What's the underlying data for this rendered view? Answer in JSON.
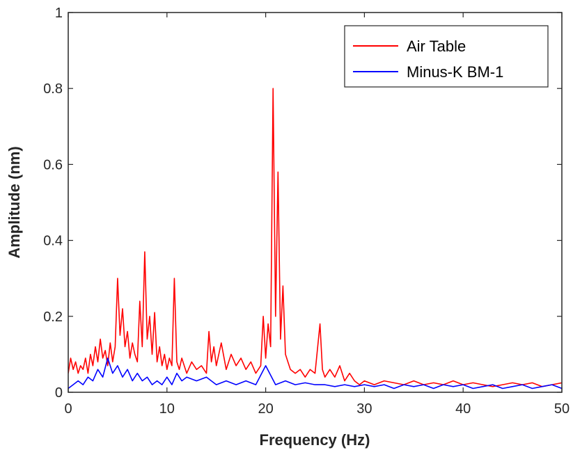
{
  "chart_data": {
    "type": "line",
    "xlabel": "Frequency (Hz)",
    "ylabel": "Amplitude (nm)",
    "xlim": [
      0,
      50
    ],
    "ylim": [
      0,
      1
    ],
    "x_ticks": [
      "0",
      "10",
      "20",
      "30",
      "40",
      "50"
    ],
    "y_ticks": [
      "0",
      "0.2",
      "0.4",
      "0.6",
      "0.8",
      "1"
    ],
    "grid": false,
    "legend_position": "top-right",
    "series": [
      {
        "name": "Air Table",
        "color": "#ff0000",
        "x": [
          0,
          0.25,
          0.5,
          0.75,
          1,
          1.25,
          1.5,
          1.75,
          2,
          2.25,
          2.5,
          2.75,
          3,
          3.25,
          3.5,
          3.75,
          4,
          4.25,
          4.5,
          4.75,
          5,
          5.25,
          5.5,
          5.75,
          6,
          6.25,
          6.5,
          6.75,
          7,
          7.25,
          7.5,
          7.75,
          8,
          8.25,
          8.5,
          8.75,
          9,
          9.25,
          9.5,
          9.75,
          10,
          10.25,
          10.5,
          10.75,
          11,
          11.25,
          11.5,
          11.75,
          12,
          12.5,
          13,
          13.5,
          14,
          14.25,
          14.5,
          14.75,
          15,
          15.5,
          16,
          16.5,
          17,
          17.5,
          18,
          18.5,
          19,
          19.5,
          19.75,
          20,
          20.25,
          20.5,
          20.75,
          21,
          21.25,
          21.5,
          21.75,
          22,
          22.25,
          22.5,
          23,
          23.5,
          24,
          24.5,
          25,
          25.5,
          25.75,
          26,
          26.5,
          27,
          27.5,
          28,
          28.5,
          29,
          29.5,
          30,
          31,
          32,
          33,
          34,
          35,
          36,
          37,
          38,
          39,
          40,
          41,
          42,
          43,
          44,
          45,
          46,
          47,
          48,
          49,
          50
        ],
        "y": [
          0.05,
          0.09,
          0.06,
          0.08,
          0.05,
          0.07,
          0.06,
          0.09,
          0.05,
          0.1,
          0.07,
          0.12,
          0.08,
          0.14,
          0.09,
          0.11,
          0.07,
          0.13,
          0.08,
          0.12,
          0.3,
          0.15,
          0.22,
          0.12,
          0.16,
          0.09,
          0.13,
          0.1,
          0.08,
          0.24,
          0.12,
          0.37,
          0.14,
          0.2,
          0.1,
          0.21,
          0.08,
          0.12,
          0.07,
          0.1,
          0.06,
          0.09,
          0.07,
          0.3,
          0.08,
          0.06,
          0.09,
          0.07,
          0.05,
          0.08,
          0.06,
          0.07,
          0.05,
          0.16,
          0.08,
          0.12,
          0.07,
          0.13,
          0.06,
          0.1,
          0.07,
          0.09,
          0.06,
          0.08,
          0.05,
          0.07,
          0.2,
          0.09,
          0.18,
          0.12,
          0.8,
          0.2,
          0.58,
          0.14,
          0.28,
          0.1,
          0.08,
          0.06,
          0.05,
          0.06,
          0.04,
          0.06,
          0.05,
          0.18,
          0.06,
          0.04,
          0.06,
          0.04,
          0.07,
          0.03,
          0.05,
          0.03,
          0.02,
          0.03,
          0.02,
          0.03,
          0.025,
          0.02,
          0.03,
          0.02,
          0.025,
          0.02,
          0.03,
          0.02,
          0.025,
          0.02,
          0.015,
          0.02,
          0.025,
          0.02,
          0.025,
          0.015,
          0.02,
          0.025
        ]
      },
      {
        "name": "Minus-K BM-1",
        "color": "#0000ff",
        "x": [
          0,
          0.5,
          1,
          1.5,
          2,
          2.5,
          3,
          3.5,
          4,
          4.5,
          5,
          5.5,
          6,
          6.5,
          7,
          7.5,
          8,
          8.5,
          9,
          9.5,
          10,
          10.5,
          11,
          11.5,
          12,
          13,
          14,
          15,
          16,
          17,
          18,
          19,
          20,
          21,
          22,
          23,
          24,
          25,
          26,
          27,
          28,
          29,
          30,
          31,
          32,
          33,
          34,
          35,
          36,
          37,
          38,
          39,
          40,
          41,
          42,
          43,
          44,
          45,
          46,
          47,
          48,
          49,
          50
        ],
        "y": [
          0.01,
          0.02,
          0.03,
          0.02,
          0.04,
          0.03,
          0.06,
          0.04,
          0.09,
          0.05,
          0.07,
          0.04,
          0.06,
          0.03,
          0.05,
          0.03,
          0.04,
          0.02,
          0.03,
          0.02,
          0.04,
          0.02,
          0.05,
          0.03,
          0.04,
          0.03,
          0.04,
          0.02,
          0.03,
          0.02,
          0.03,
          0.02,
          0.07,
          0.02,
          0.03,
          0.02,
          0.025,
          0.02,
          0.02,
          0.015,
          0.02,
          0.015,
          0.02,
          0.015,
          0.02,
          0.01,
          0.02,
          0.015,
          0.02,
          0.01,
          0.02,
          0.015,
          0.02,
          0.01,
          0.015,
          0.02,
          0.01,
          0.015,
          0.02,
          0.01,
          0.015,
          0.02,
          0.01
        ]
      }
    ]
  }
}
